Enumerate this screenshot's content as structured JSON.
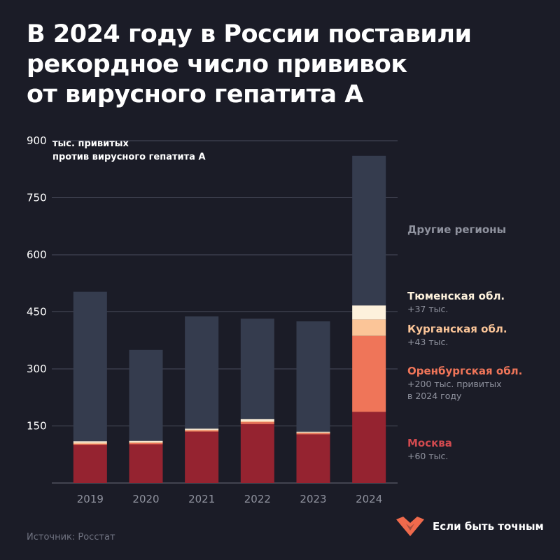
{
  "title": {
    "lines": [
      "В 2024 году в России поставили",
      "рекордное число прививок",
      "от вирусного гепатита А"
    ]
  },
  "source": "Источник: Росстат",
  "brand": {
    "name": "Если быть точным"
  },
  "colors": {
    "background": "#1b1c27",
    "other": "#353c4e",
    "moscow": "#952330",
    "orenburg": "#ef7559",
    "kurgan": "#fbc598",
    "tyumen": "#fdf1dc",
    "muted": "#8f929e"
  },
  "legend": [
    {
      "key": "other",
      "name": "Другие регионы",
      "note": []
    },
    {
      "key": "tyumen",
      "name": "Тюменская обл.",
      "note": [
        "+37 тыс."
      ]
    },
    {
      "key": "kurgan",
      "name": "Курганская обл.",
      "note": [
        "+43 тыс."
      ]
    },
    {
      "key": "orenburg",
      "name": "Оренбургская обл.",
      "note": [
        "+200 тыс. привитых",
        "в 2024 году"
      ]
    },
    {
      "key": "moscow",
      "name": "Москва",
      "note": [
        "+60 тыс."
      ]
    }
  ],
  "chart_data": {
    "type": "bar",
    "stacked": true,
    "ylabel_lines": [
      "тыс. привитых",
      "против вирусного гепатита А"
    ],
    "ylim": [
      0,
      900
    ],
    "yticks": [
      150,
      300,
      450,
      600,
      750,
      900
    ],
    "categories": [
      "2019",
      "2020",
      "2021",
      "2022",
      "2023",
      "2024"
    ],
    "series": [
      {
        "key": "moscow",
        "name": "Москва",
        "values": [
          100,
          102,
          135,
          155,
          128,
          187
        ]
      },
      {
        "key": "orenburg",
        "name": "Оренбургская обл.",
        "values": [
          3,
          3,
          3,
          5,
          3,
          200
        ]
      },
      {
        "key": "kurgan",
        "name": "Курганская обл.",
        "values": [
          3,
          3,
          2,
          3,
          2,
          43
        ]
      },
      {
        "key": "tyumen",
        "name": "Тюменская обл.",
        "values": [
          4,
          3,
          3,
          5,
          2,
          37
        ]
      },
      {
        "key": "other",
        "name": "Другие регионы",
        "values": [
          393,
          239,
          295,
          264,
          290,
          393
        ]
      }
    ],
    "grid": true
  }
}
